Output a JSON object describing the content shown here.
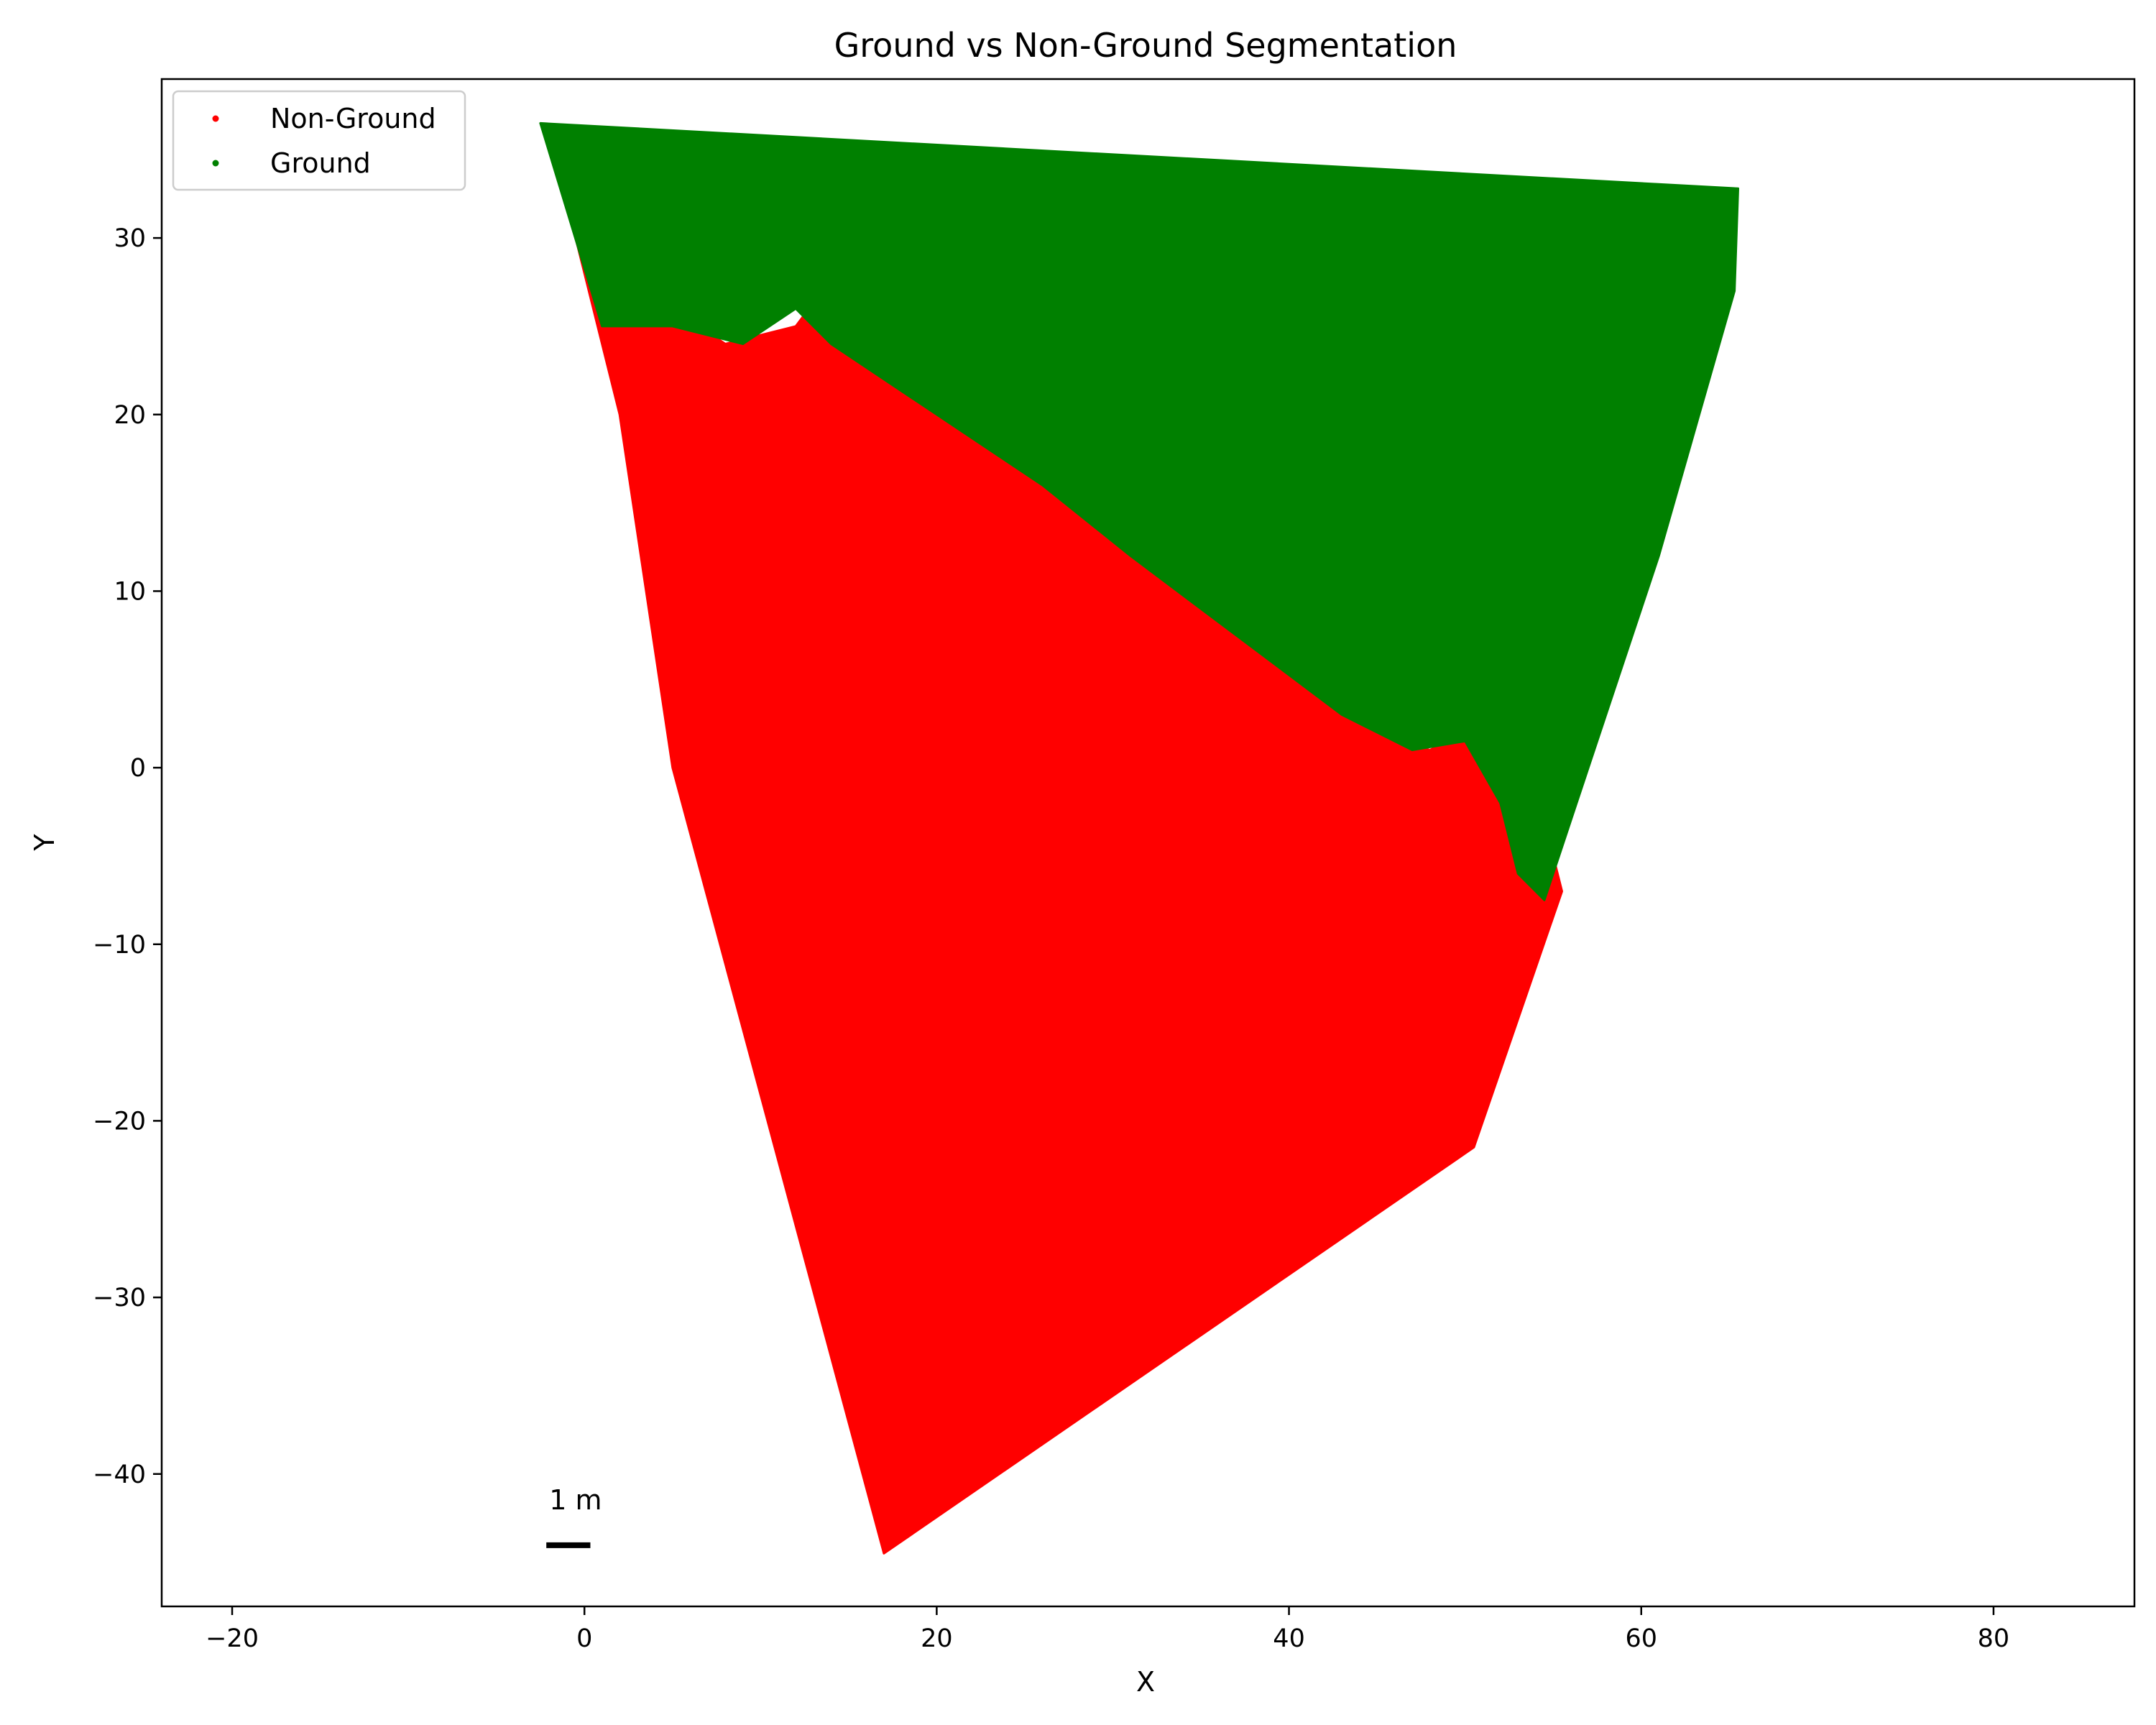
{
  "chart_data": {
    "type": "scatter",
    "title": "Ground vs Non-Ground Segmentation",
    "xlabel": "X",
    "ylabel": "Y",
    "xlim": [
      -24,
      88
    ],
    "ylim": [
      -47.5,
      39
    ],
    "xticks": [
      -20,
      0,
      20,
      40,
      60,
      80
    ],
    "yticks": [
      -40,
      -30,
      -20,
      -10,
      0,
      10,
      20,
      30
    ],
    "xtick_labels": [
      "−20",
      "0",
      "20",
      "40",
      "60",
      "80"
    ],
    "ytick_labels": [
      "−40",
      "−30",
      "−20",
      "−10",
      "0",
      "10",
      "20",
      "30"
    ],
    "grid": false,
    "legend_position": "upper-left",
    "series": [
      {
        "name": "Non-Ground",
        "color": "#ff0000",
        "region_outline": [
          [
            -2,
            36
          ],
          [
            1,
            29
          ],
          [
            5,
            26
          ],
          [
            8,
            24
          ],
          [
            12,
            25
          ],
          [
            13.5,
            27
          ],
          [
            14,
            25
          ],
          [
            18,
            22
          ],
          [
            24,
            18
          ],
          [
            30,
            13
          ],
          [
            34,
            11
          ],
          [
            37,
            8
          ],
          [
            41,
            5
          ],
          [
            45,
            2
          ],
          [
            48,
            1
          ],
          [
            50,
            2
          ],
          [
            52,
            -1
          ],
          [
            55,
            -5
          ],
          [
            55.5,
            -7
          ],
          [
            50.5,
            -21.5
          ],
          [
            17,
            -44.5
          ],
          [
            5,
            0
          ],
          [
            2,
            20
          ]
        ]
      },
      {
        "name": "Ground",
        "color": "#008000",
        "region_outline": [
          [
            -2.5,
            36.5
          ],
          [
            65.5,
            32.8
          ],
          [
            65.3,
            27
          ],
          [
            61,
            12
          ],
          [
            56,
            -3
          ],
          [
            54.5,
            -7.5
          ],
          [
            53,
            -6
          ],
          [
            52,
            -2
          ],
          [
            50,
            1.5
          ],
          [
            47,
            1
          ],
          [
            43,
            3
          ],
          [
            39,
            6
          ],
          [
            35,
            9
          ],
          [
            31,
            12
          ],
          [
            26,
            16
          ],
          [
            20,
            20
          ],
          [
            14,
            24
          ],
          [
            12,
            26
          ],
          [
            9,
            24
          ],
          [
            5,
            25
          ],
          [
            1,
            25
          ]
        ]
      }
    ],
    "annotations": [
      {
        "text": "1 m",
        "x": -2,
        "y": -42,
        "scale_bar_length": 1
      }
    ]
  }
}
